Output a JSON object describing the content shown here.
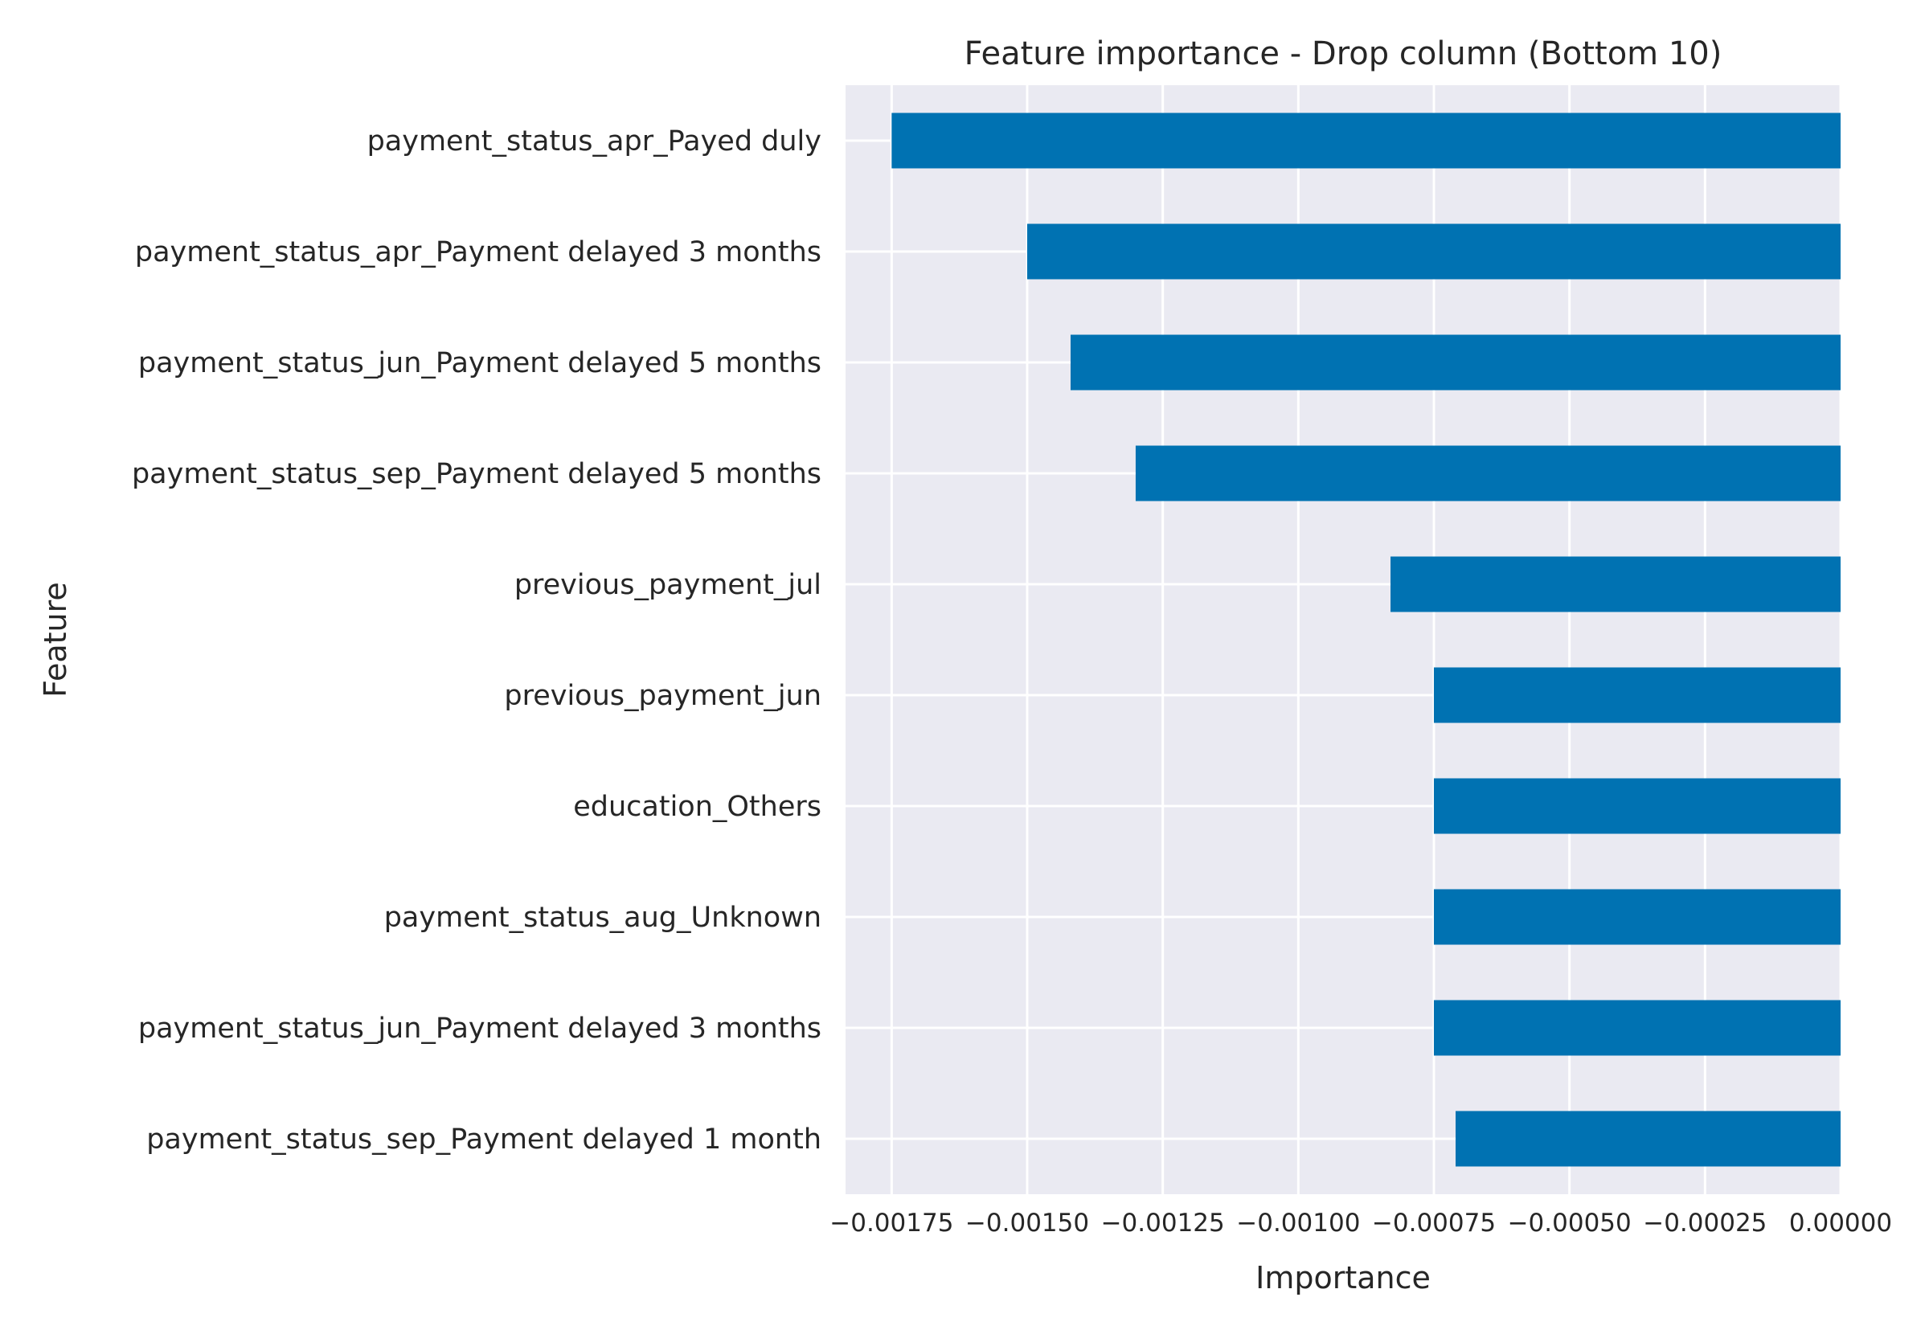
{
  "chart_data": {
    "type": "bar",
    "orientation": "horizontal",
    "title": "Feature importance - Drop column (Bottom 10)",
    "xlabel": "Importance",
    "ylabel": "Feature",
    "categories": [
      "payment_status_apr_Payed duly",
      "payment_status_apr_Payment delayed 3 months",
      "payment_status_jun_Payment delayed 5 months",
      "payment_status_sep_Payment delayed 5 months",
      "previous_payment_jul",
      "previous_payment_jun",
      "education_Others",
      "payment_status_aug_Unknown",
      "payment_status_jun_Payment delayed 3 months",
      "payment_status_sep_Payment delayed 1 month"
    ],
    "values": [
      -0.00175,
      -0.0015,
      -0.00142,
      -0.0013,
      -0.00083,
      -0.00075,
      -0.00075,
      -0.00075,
      -0.00075,
      -0.00071
    ],
    "xticks": [
      -0.00175,
      -0.0015,
      -0.00125,
      -0.001,
      -0.00075,
      -0.0005,
      -0.00025,
      0
    ],
    "xtick_labels": [
      "−0.00175",
      "−0.00150",
      "−0.00125",
      "−0.00100",
      "−0.00075",
      "−0.00050",
      "−0.00025",
      "0.00000"
    ],
    "xlim": [
      -0.001835,
      0.0
    ],
    "grid": true,
    "bar_color": "#0072b2",
    "background_color": "#eaeaf2"
  }
}
